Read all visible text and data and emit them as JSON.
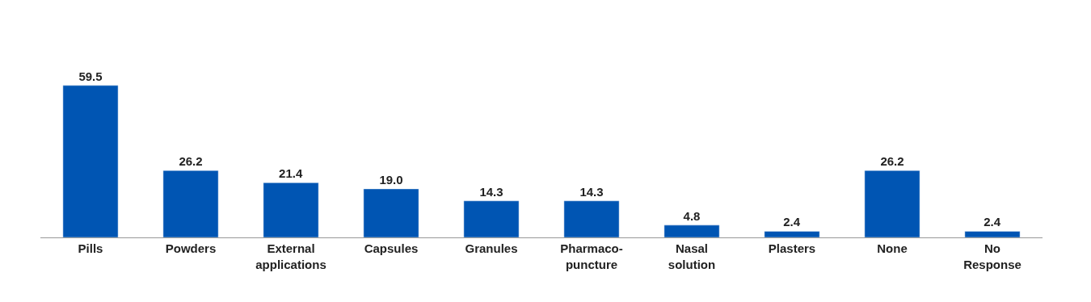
{
  "chart_data": {
    "type": "bar",
    "categories": [
      "Pills",
      "Powders",
      "External\napplications",
      "Capsules",
      "Granules",
      "Pharmaco-\npuncture",
      "Nasal\nsolution",
      "Plasters",
      "None",
      "No\nResponse"
    ],
    "values": [
      59.5,
      26.2,
      21.4,
      19.0,
      14.3,
      14.3,
      4.8,
      2.4,
      26.2,
      2.4
    ],
    "value_labels": [
      "59.5",
      "26.2",
      "21.4",
      "19.0",
      "14.3",
      "14.3",
      "4.8",
      "2.4",
      "26.2",
      "2.4"
    ],
    "color": "#0055b3"
  }
}
